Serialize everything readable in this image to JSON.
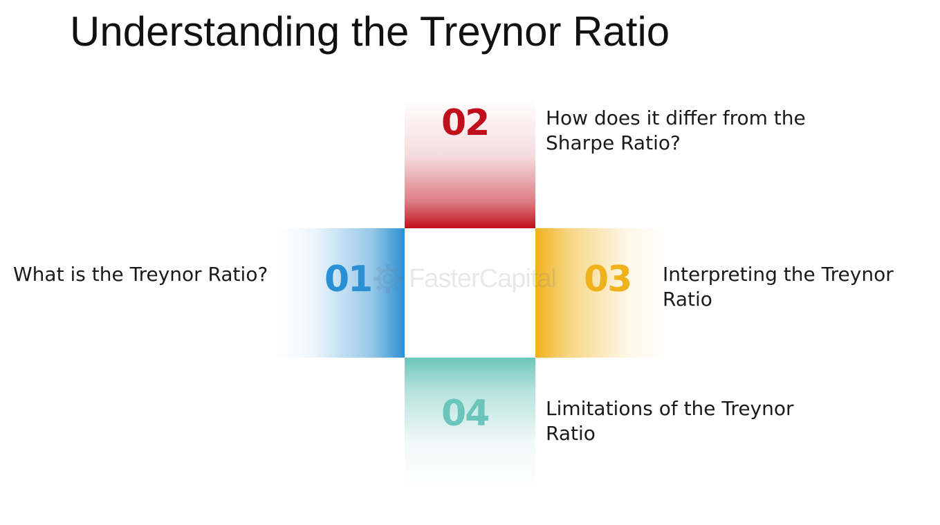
{
  "title": "Understanding the Treynor Ratio",
  "items": [
    {
      "number": "01",
      "label": "What is the Treynor Ratio?",
      "color": "#2B8FD3"
    },
    {
      "number": "02",
      "label": "How does it differ from the Sharpe Ratio?",
      "color": "#C00F1B"
    },
    {
      "number": "03",
      "label": "Interpreting the Treynor Ratio",
      "color": "#F0B21C"
    },
    {
      "number": "04",
      "label": "Limitations of the Treynor Ratio",
      "color": "#6CC5BA"
    }
  ],
  "watermark": {
    "text": "FasterCapital",
    "icon": "gear-icon"
  }
}
